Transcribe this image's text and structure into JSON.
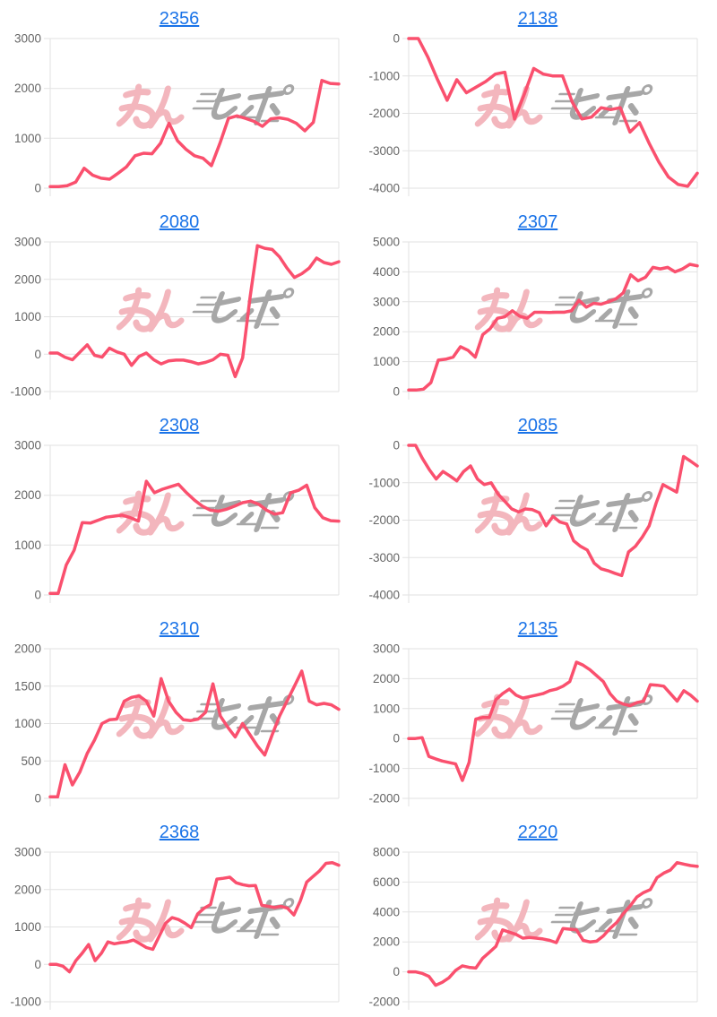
{
  "page": {
    "background": "#ffffff"
  },
  "theme": {
    "line_color": "#fa506e",
    "title_color": "#1a73e8",
    "tick_label_color": "#666666",
    "gridline_color": "#e2e2e2",
    "watermark_pink": "#f3b6bd",
    "watermark_gray": "#a7a7a7"
  },
  "watermark": {
    "text": "みんレポ"
  },
  "chart_data": [
    {
      "type": "line",
      "title": "2356",
      "xlabel": "",
      "ylabel": "",
      "ylim": [
        0,
        3000
      ],
      "yticks": [
        0,
        1000,
        2000,
        3000
      ],
      "grid": true,
      "legend": "none",
      "values": [
        30,
        30,
        50,
        120,
        400,
        260,
        200,
        180,
        300,
        430,
        650,
        700,
        690,
        900,
        1300,
        950,
        780,
        650,
        600,
        450,
        900,
        1400,
        1450,
        1400,
        1340,
        1240,
        1390,
        1410,
        1380,
        1300,
        1150,
        1320,
        2160,
        2100,
        2090
      ]
    },
    {
      "type": "line",
      "title": "2138",
      "xlabel": "",
      "ylabel": "",
      "ylim": [
        -4000,
        0
      ],
      "yticks": [
        -4000,
        -3000,
        -2000,
        -1000,
        0
      ],
      "grid": true,
      "legend": "none",
      "values": [
        0,
        0,
        -500,
        -1100,
        -1650,
        -1100,
        -1450,
        -1300,
        -1150,
        -950,
        -900,
        -2150,
        -1500,
        -800,
        -950,
        -1000,
        -1000,
        -1700,
        -2150,
        -2100,
        -1850,
        -1900,
        -1850,
        -2500,
        -2250,
        -2800,
        -3300,
        -3700,
        -3900,
        -3950,
        -3600
      ]
    },
    {
      "type": "line",
      "title": "2080",
      "xlabel": "",
      "ylabel": "",
      "ylim": [
        -1000,
        3000
      ],
      "yticks": [
        -1000,
        0,
        1000,
        2000,
        3000
      ],
      "grid": true,
      "legend": "none",
      "values": [
        30,
        30,
        -80,
        -150,
        50,
        250,
        -30,
        -80,
        160,
        60,
        0,
        -300,
        -60,
        30,
        -150,
        -260,
        -180,
        -160,
        -160,
        -200,
        -260,
        -220,
        -150,
        0,
        -30,
        -600,
        -100,
        1500,
        2900,
        2830,
        2800,
        2600,
        2300,
        2050,
        2150,
        2300,
        2570,
        2450,
        2400,
        2470
      ]
    },
    {
      "type": "line",
      "title": "2307",
      "xlabel": "",
      "ylabel": "",
      "ylim": [
        0,
        5000
      ],
      "yticks": [
        0,
        1000,
        2000,
        3000,
        4000,
        5000
      ],
      "grid": true,
      "legend": "none",
      "values": [
        50,
        50,
        80,
        300,
        1050,
        1080,
        1150,
        1500,
        1380,
        1150,
        1900,
        2100,
        2450,
        2500,
        2700,
        2520,
        2450,
        2650,
        2650,
        2640,
        2650,
        2650,
        2700,
        3050,
        2820,
        2950,
        2920,
        3000,
        3100,
        3300,
        3900,
        3700,
        3820,
        4150,
        4100,
        4150,
        4000,
        4100,
        4250,
        4200
      ]
    },
    {
      "type": "line",
      "title": "2308",
      "xlabel": "",
      "ylabel": "",
      "ylim": [
        0,
        3000
      ],
      "yticks": [
        0,
        1000,
        2000,
        3000
      ],
      "grid": true,
      "legend": "none",
      "values": [
        30,
        30,
        600,
        900,
        1450,
        1440,
        1500,
        1560,
        1580,
        1600,
        1550,
        1480,
        2280,
        2050,
        2120,
        2170,
        2220,
        2050,
        1900,
        1780,
        1700,
        1680,
        1720,
        1780,
        1850,
        1880,
        1820,
        1700,
        1620,
        1650,
        2050,
        2100,
        2200,
        1750,
        1550,
        1490,
        1480
      ]
    },
    {
      "type": "line",
      "title": "2085",
      "xlabel": "",
      "ylabel": "",
      "ylim": [
        -4000,
        0
      ],
      "yticks": [
        -4000,
        -3000,
        -2000,
        -1000,
        0
      ],
      "grid": true,
      "legend": "none",
      "values": [
        0,
        0,
        -350,
        -650,
        -900,
        -700,
        -820,
        -950,
        -700,
        -550,
        -900,
        -1050,
        -1000,
        -1300,
        -1500,
        -1700,
        -1780,
        -1700,
        -1720,
        -1800,
        -2150,
        -1900,
        -2050,
        -2100,
        -2550,
        -2700,
        -2800,
        -3150,
        -3300,
        -3350,
        -3420,
        -3480,
        -2850,
        -2700,
        -2450,
        -2150,
        -1550,
        -1050,
        -1150,
        -1250,
        -300,
        -420,
        -550
      ]
    },
    {
      "type": "line",
      "title": "2310",
      "xlabel": "",
      "ylabel": "",
      "ylim": [
        0,
        2000
      ],
      "yticks": [
        0,
        500,
        1000,
        1500,
        2000
      ],
      "grid": true,
      "legend": "none",
      "values": [
        20,
        20,
        450,
        180,
        350,
        600,
        780,
        1000,
        1050,
        1060,
        1300,
        1350,
        1370,
        1300,
        1100,
        1600,
        1300,
        1150,
        1050,
        1040,
        1060,
        1150,
        1530,
        1100,
        950,
        820,
        1000,
        850,
        700,
        580,
        850,
        1100,
        1300,
        1500,
        1700,
        1300,
        1250,
        1270,
        1250,
        1190
      ]
    },
    {
      "type": "line",
      "title": "2135",
      "xlabel": "",
      "ylabel": "",
      "ylim": [
        -2000,
        3000
      ],
      "yticks": [
        -2000,
        -1000,
        0,
        1000,
        2000,
        3000
      ],
      "grid": true,
      "legend": "none",
      "values": [
        0,
        0,
        30,
        -600,
        -680,
        -750,
        -800,
        -850,
        -1400,
        -800,
        650,
        700,
        700,
        1300,
        1500,
        1650,
        1450,
        1350,
        1400,
        1450,
        1500,
        1600,
        1650,
        1750,
        1900,
        2550,
        2450,
        2300,
        2100,
        1900,
        1500,
        1250,
        1150,
        1100,
        1200,
        1250,
        1800,
        1780,
        1750,
        1500,
        1250,
        1600,
        1450,
        1250
      ]
    },
    {
      "type": "line",
      "title": "2368",
      "xlabel": "",
      "ylabel": "",
      "ylim": [
        -1000,
        3000
      ],
      "yticks": [
        -1000,
        0,
        1000,
        2000,
        3000
      ],
      "grid": true,
      "legend": "none",
      "values": [
        0,
        0,
        -50,
        -200,
        100,
        300,
        530,
        100,
        300,
        600,
        550,
        580,
        600,
        650,
        550,
        450,
        400,
        750,
        1100,
        1250,
        1200,
        1100,
        980,
        1350,
        1500,
        1600,
        2280,
        2300,
        2330,
        2180,
        2130,
        2100,
        2110,
        1580,
        1550,
        1520,
        1550,
        1500,
        1320,
        1700,
        2200,
        2350,
        2500,
        2700,
        2720,
        2650
      ]
    },
    {
      "type": "line",
      "title": "2220",
      "xlabel": "",
      "ylabel": "",
      "ylim": [
        -2000,
        8000
      ],
      "yticks": [
        -2000,
        0,
        2000,
        4000,
        6000,
        8000
      ],
      "grid": true,
      "legend": "none",
      "values": [
        0,
        0,
        -100,
        -300,
        -900,
        -700,
        -400,
        100,
        400,
        300,
        250,
        900,
        1300,
        1700,
        2800,
        2650,
        2500,
        2250,
        2300,
        2250,
        2200,
        2100,
        1950,
        2900,
        2850,
        2800,
        2100,
        2000,
        2050,
        2400,
        2900,
        3300,
        3900,
        4400,
        5000,
        5300,
        5500,
        6300,
        6600,
        6800,
        7300,
        7200,
        7100,
        7050
      ]
    }
  ]
}
